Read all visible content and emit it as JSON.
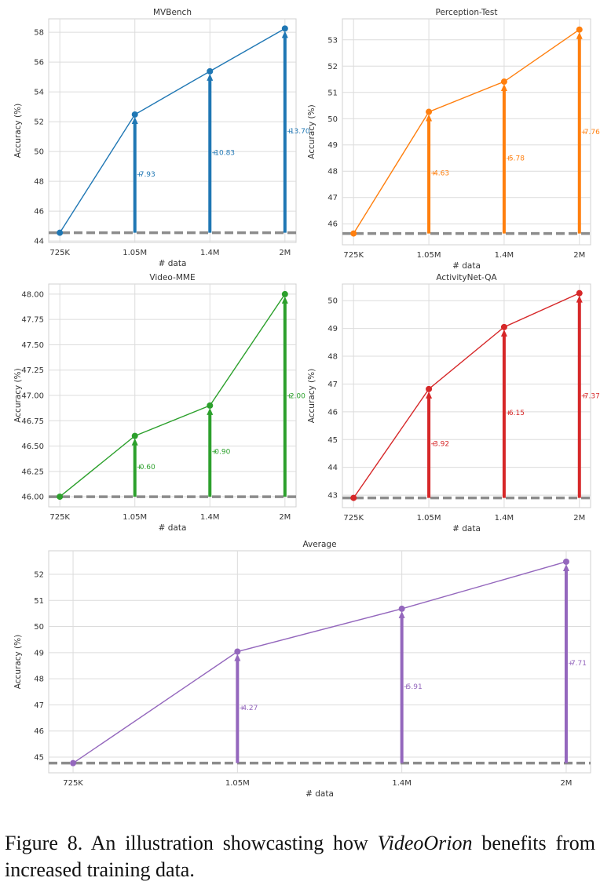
{
  "figure": {
    "caption_prefix": "Figure 8.",
    "caption_before": "An illustration showcasting how",
    "caption_emph": "VideoOrion",
    "caption_after": "benefits from increased training data."
  },
  "colors": {
    "MVBench": "#1f77b4",
    "Perception-Test": "#ff7f0e",
    "Video-MME": "#2ca02c",
    "ActivityNet-QA": "#d62728",
    "Average": "#9467bd",
    "baseline": "#8c8c8c",
    "grid": "#dcdcdc"
  },
  "chart_data": [
    {
      "type": "line",
      "title": "MVBench",
      "xlabel": "# data",
      "ylabel": "Accuracy (%)",
      "categories": [
        "725K",
        "1.05M",
        "1.4M",
        "2M"
      ],
      "values": [
        44.55,
        52.48,
        55.38,
        58.25
      ],
      "baseline": 44.55,
      "gains": [
        "",
        "7.93",
        "10.83",
        "13.70"
      ],
      "ylim": [
        43.9,
        58.9
      ],
      "yticks": [
        44,
        46,
        48,
        50,
        52,
        54,
        56,
        58
      ],
      "ytick_labels": [
        "44",
        "46",
        "48",
        "50",
        "52",
        "54",
        "56",
        "58"
      ],
      "grid": true
    },
    {
      "type": "line",
      "title": "Perception-Test",
      "xlabel": "# data",
      "ylabel": "Accuracy (%)",
      "categories": [
        "725K",
        "1.05M",
        "1.4M",
        "2M"
      ],
      "values": [
        45.63,
        50.26,
        51.41,
        53.39
      ],
      "baseline": 45.63,
      "gains": [
        "",
        "4.63",
        "5.78",
        "7.76"
      ],
      "ylim": [
        45.2,
        53.8
      ],
      "yticks": [
        46,
        47,
        48,
        49,
        50,
        51,
        52,
        53
      ],
      "ytick_labels": [
        "46",
        "47",
        "48",
        "49",
        "50",
        "51",
        "52",
        "53"
      ],
      "grid": true
    },
    {
      "type": "line",
      "title": "Video-MME",
      "xlabel": "# data",
      "ylabel": "Accuracy (%)",
      "categories": [
        "725K",
        "1.05M",
        "1.4M",
        "2M"
      ],
      "values": [
        46.0,
        46.6,
        46.9,
        48.0
      ],
      "baseline": 46.0,
      "gains": [
        "",
        "0.60",
        "0.90",
        "2.00"
      ],
      "ylim": [
        45.9,
        48.1
      ],
      "yticks": [
        46.0,
        46.25,
        46.5,
        46.75,
        47.0,
        47.25,
        47.5,
        47.75,
        48.0
      ],
      "ytick_labels": [
        "46.00",
        "46.25",
        "46.50",
        "46.75",
        "47.00",
        "47.25",
        "47.50",
        "47.75",
        "48.00"
      ],
      "grid": true
    },
    {
      "type": "line",
      "title": "ActivityNet-QA",
      "xlabel": "# data",
      "ylabel": "Accuracy (%)",
      "categories": [
        "725K",
        "1.05M",
        "1.4M",
        "2M"
      ],
      "values": [
        42.9,
        46.82,
        49.05,
        50.27
      ],
      "baseline": 42.9,
      "gains": [
        "",
        "3.92",
        "6.15",
        "7.37"
      ],
      "ylim": [
        42.55,
        50.6
      ],
      "yticks": [
        43,
        44,
        45,
        46,
        47,
        48,
        49,
        50
      ],
      "ytick_labels": [
        "43",
        "44",
        "45",
        "46",
        "47",
        "48",
        "49",
        "50"
      ],
      "grid": true
    },
    {
      "type": "line",
      "title": "Average",
      "xlabel": "# data",
      "ylabel": "Accuracy (%)",
      "categories": [
        "725K",
        "1.05M",
        "1.4M",
        "2M"
      ],
      "values": [
        44.77,
        49.04,
        50.68,
        52.48
      ],
      "baseline": 44.77,
      "gains": [
        "",
        "4.27",
        "5.91",
        "7.71"
      ],
      "ylim": [
        44.4,
        52.9
      ],
      "yticks": [
        45,
        46,
        47,
        48,
        49,
        50,
        51,
        52
      ],
      "ytick_labels": [
        "45",
        "46",
        "47",
        "48",
        "49",
        "50",
        "51",
        "52"
      ],
      "grid": true
    }
  ]
}
